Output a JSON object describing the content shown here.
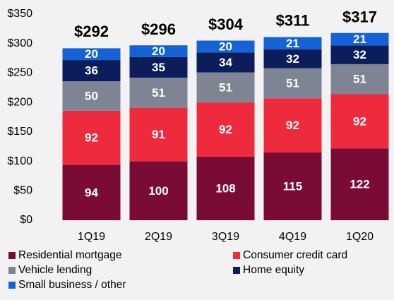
{
  "chart_data": {
    "type": "stacked_bar",
    "categories": [
      "1Q19",
      "2Q19",
      "3Q19",
      "4Q19",
      "1Q20"
    ],
    "series": [
      {
        "name": "Residential mortgage",
        "color": "#7a0b35",
        "values": [
          94,
          100,
          108,
          115,
          122
        ]
      },
      {
        "name": "Consumer credit card",
        "color": "#ee2a3d",
        "values": [
          92,
          91,
          92,
          92,
          92
        ]
      },
      {
        "name": "Vehicle lending",
        "color": "#7e8494",
        "values": [
          50,
          51,
          51,
          51,
          51
        ]
      },
      {
        "name": "Home equity",
        "color": "#0c1d5c",
        "values": [
          36,
          35,
          34,
          32,
          32
        ]
      },
      {
        "name": "Small business / other",
        "color": "#1462d6",
        "values": [
          20,
          20,
          20,
          21,
          21
        ]
      }
    ],
    "totals": [
      292,
      296,
      304,
      311,
      317
    ],
    "total_labels": [
      "$292",
      "$296",
      "$304",
      "$311",
      "$317"
    ],
    "ylim": [
      0,
      350
    ],
    "yticks": [
      {
        "value": 0,
        "label": "$0"
      },
      {
        "value": 50,
        "label": "$50"
      },
      {
        "value": 100,
        "label": "$100"
      },
      {
        "value": 150,
        "label": "$150"
      },
      {
        "value": 200,
        "label": "$200"
      },
      {
        "value": 250,
        "label": "$250"
      },
      {
        "value": 300,
        "label": "$300"
      },
      {
        "value": 350,
        "label": "$350"
      }
    ],
    "grid": false
  }
}
